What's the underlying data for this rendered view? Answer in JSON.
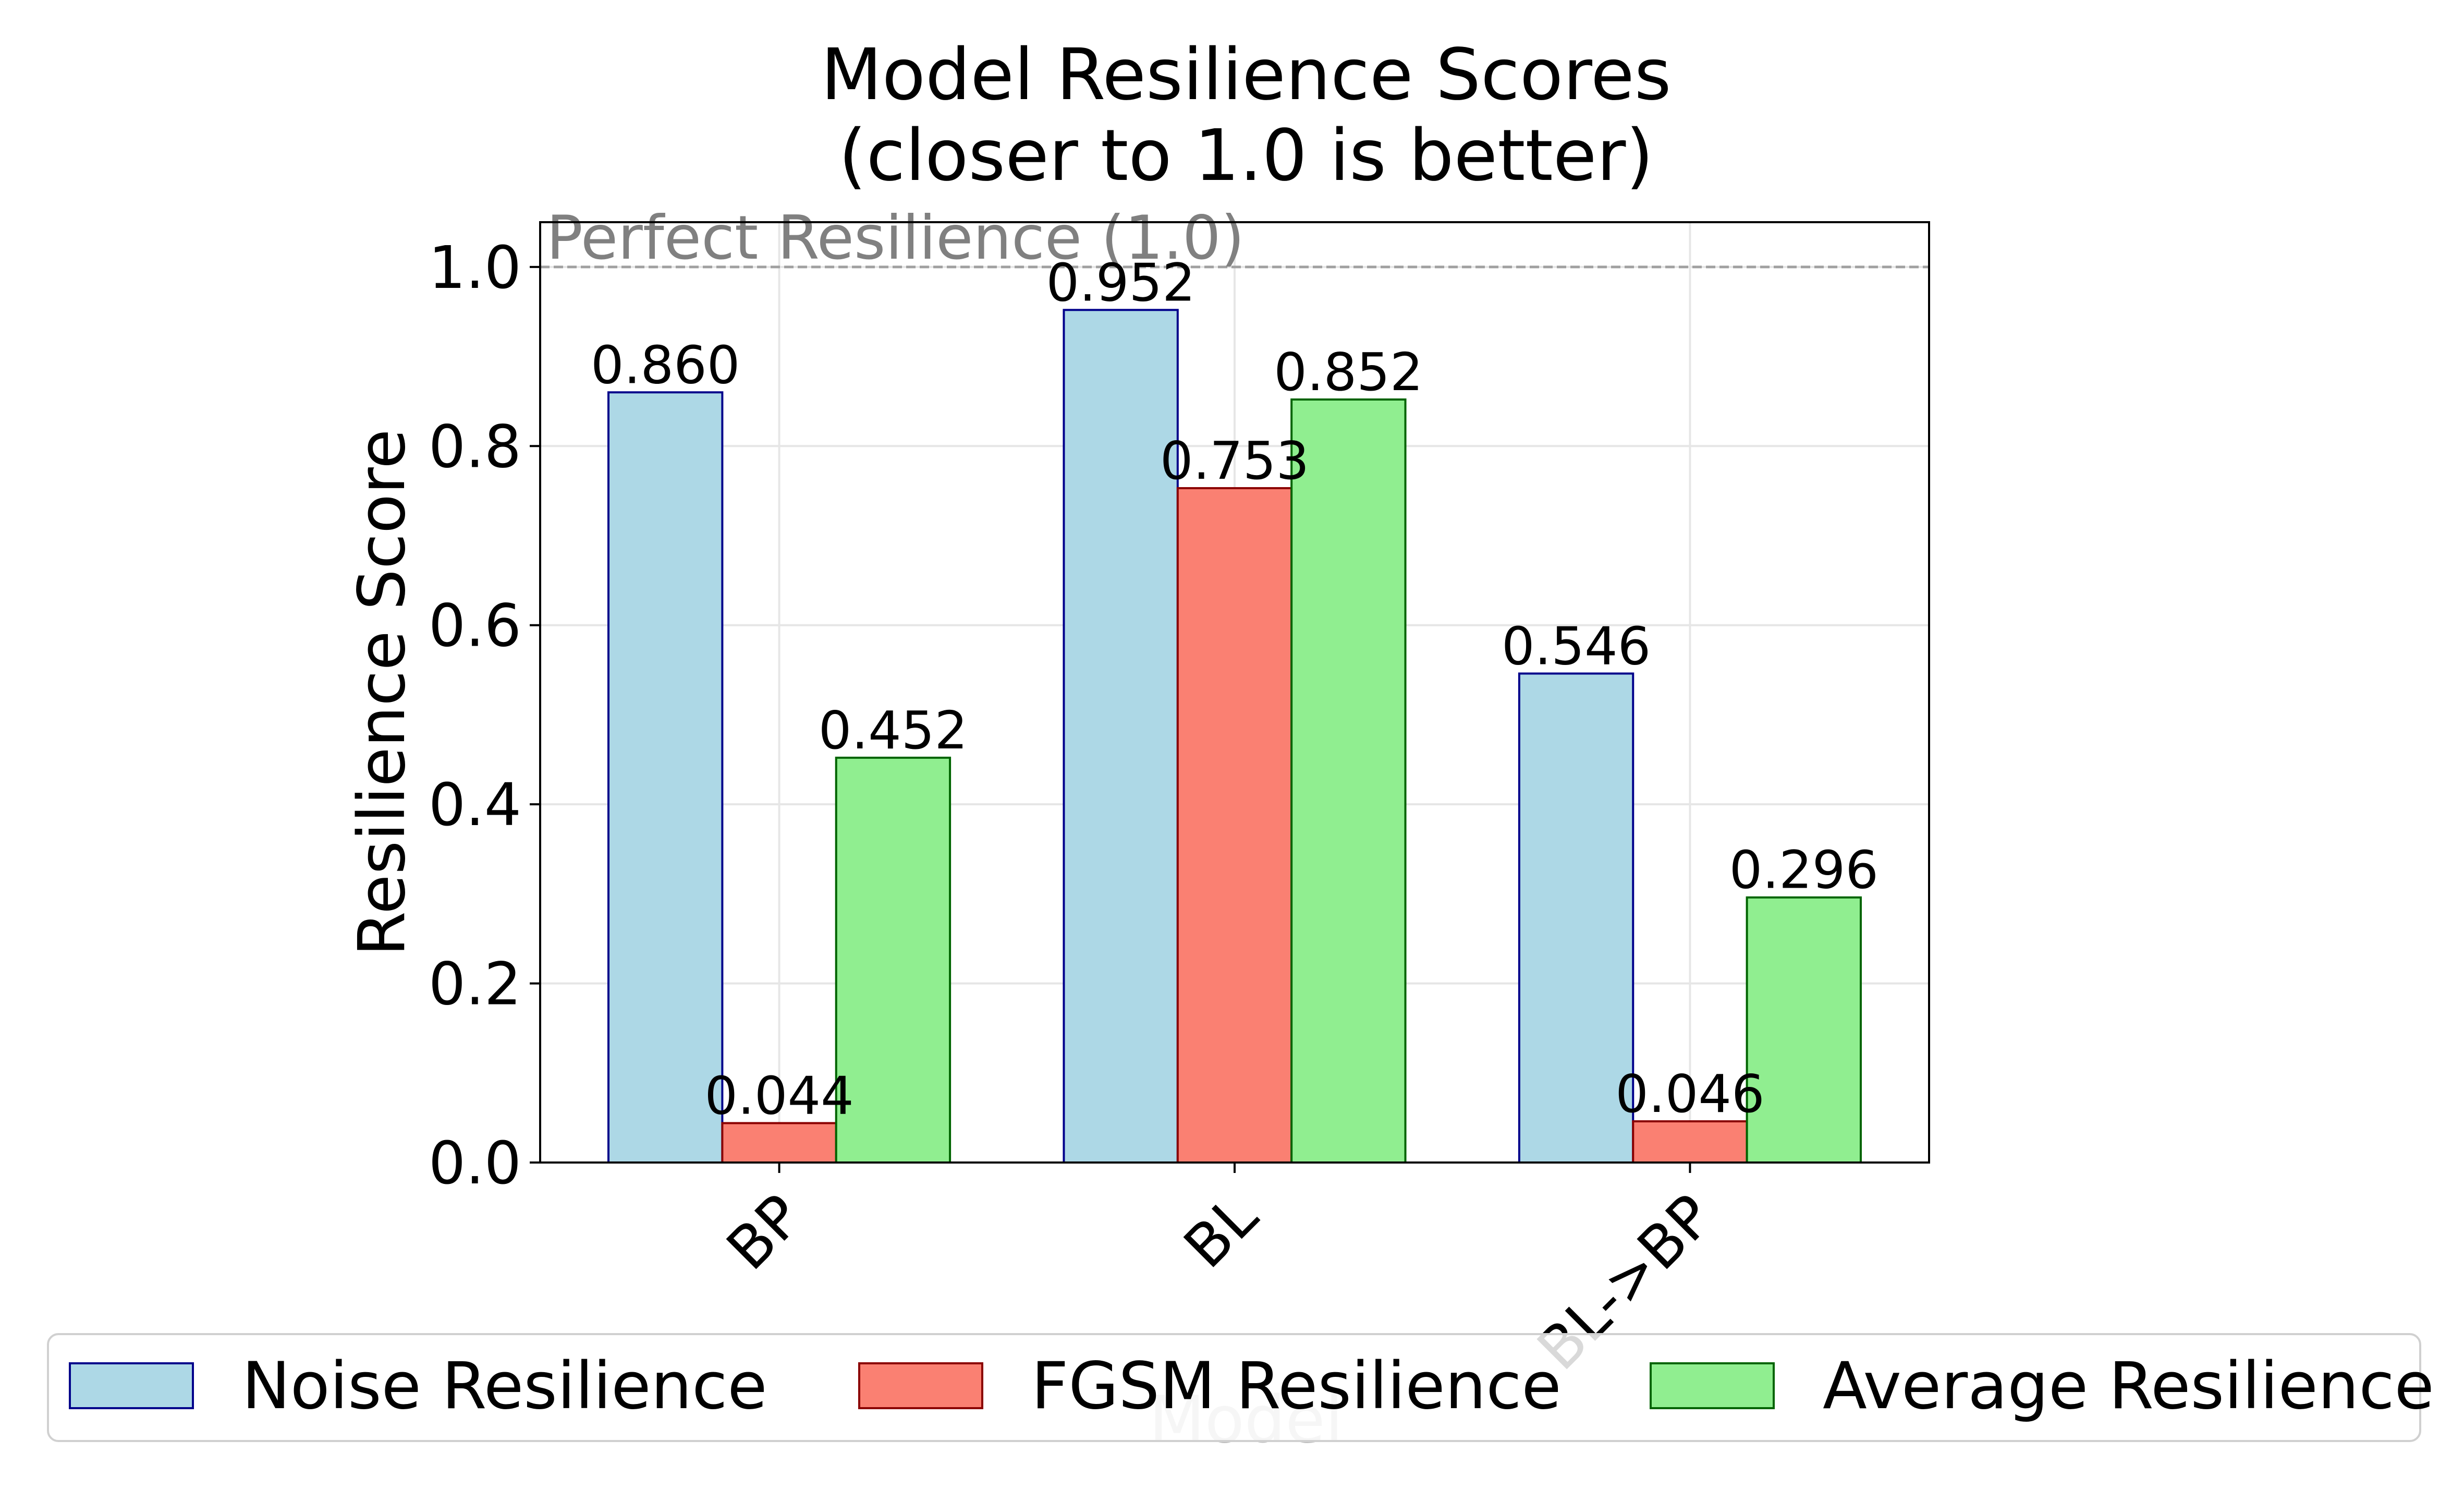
{
  "chart_data": {
    "type": "bar",
    "title": [
      "Model Resilience Scores",
      "(closer to 1.0 is better)"
    ],
    "xlabel": "Model",
    "ylabel": "Resilience Score",
    "categories": [
      "BP",
      "BL",
      "BL->BP"
    ],
    "series": [
      {
        "name": "Noise Resilience",
        "values": [
          0.86,
          0.952,
          0.546
        ],
        "labels": [
          "0.860",
          "0.952",
          "0.546"
        ],
        "color": "#add8e6",
        "edge_color": "#00008b"
      },
      {
        "name": "FGSM Resilience",
        "values": [
          0.044,
          0.753,
          0.046
        ],
        "labels": [
          "0.044",
          "0.753",
          "0.046"
        ],
        "color": "#fa8072",
        "edge_color": "#8b0000"
      },
      {
        "name": "Average Resilience",
        "values": [
          0.452,
          0.852,
          0.296
        ],
        "labels": [
          "0.452",
          "0.852",
          "0.296"
        ],
        "color": "#90ee90",
        "edge_color": "#006400"
      }
    ],
    "ylim": [
      0,
      1.05
    ],
    "yticks": [
      0.0,
      0.2,
      0.4,
      0.6,
      0.8,
      1.0
    ],
    "ytick_labels": [
      "0.0",
      "0.2",
      "0.4",
      "0.6",
      "0.8",
      "1.0"
    ],
    "grid": true,
    "reference_line": {
      "value": 1.0,
      "label": "Perfect Resilience (1.0)",
      "color": "#a0a0a0",
      "style": "dashed"
    },
    "legend": {
      "position": "bottom-center",
      "columns": 3
    }
  }
}
